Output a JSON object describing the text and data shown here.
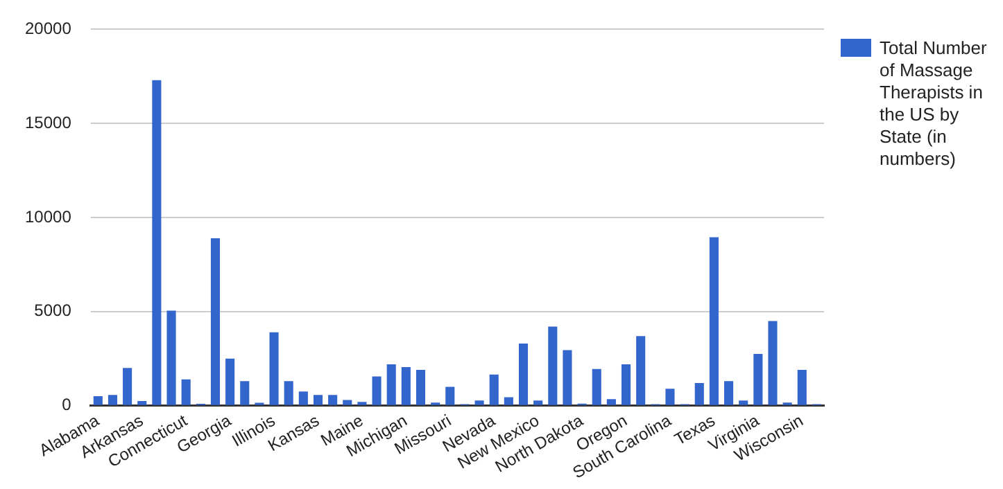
{
  "chart_data": {
    "type": "bar",
    "categories": [
      "Alabama",
      null,
      null,
      "Arkansas",
      null,
      null,
      "Connecticut",
      null,
      null,
      "Georgia",
      null,
      null,
      "Illinois",
      null,
      null,
      "Kansas",
      null,
      null,
      "Maine",
      null,
      null,
      "Michigan",
      null,
      null,
      "Missouri",
      null,
      null,
      "Nevada",
      null,
      null,
      "New Mexico",
      null,
      null,
      "North Dakota",
      null,
      null,
      "Oregon",
      null,
      null,
      "South Carolina",
      null,
      null,
      "Texas",
      null,
      null,
      "Virginia",
      null,
      null,
      "Wisconsin",
      null
    ],
    "series": [
      {
        "name": "Total Number of Massage Therapists in the US by State (in numbers)",
        "color": "#3366cc",
        "values": [
          500,
          570,
          2000,
          250,
          17300,
          5050,
          1400,
          100,
          8900,
          2500,
          1300,
          150,
          3900,
          1300,
          750,
          570,
          570,
          300,
          200,
          1550,
          2200,
          2050,
          1900,
          160,
          1000,
          80,
          270,
          1650,
          450,
          3300,
          270,
          4200,
          2950,
          110,
          1950,
          350,
          2200,
          3700,
          80,
          900,
          80,
          1200,
          8950,
          1300,
          270,
          2750,
          4500,
          160,
          1900,
          80
        ]
      }
    ],
    "ylim": [
      0,
      20000
    ],
    "yticks": [
      0,
      5000,
      10000,
      15000,
      20000
    ],
    "grid": "y",
    "legend": "right"
  }
}
